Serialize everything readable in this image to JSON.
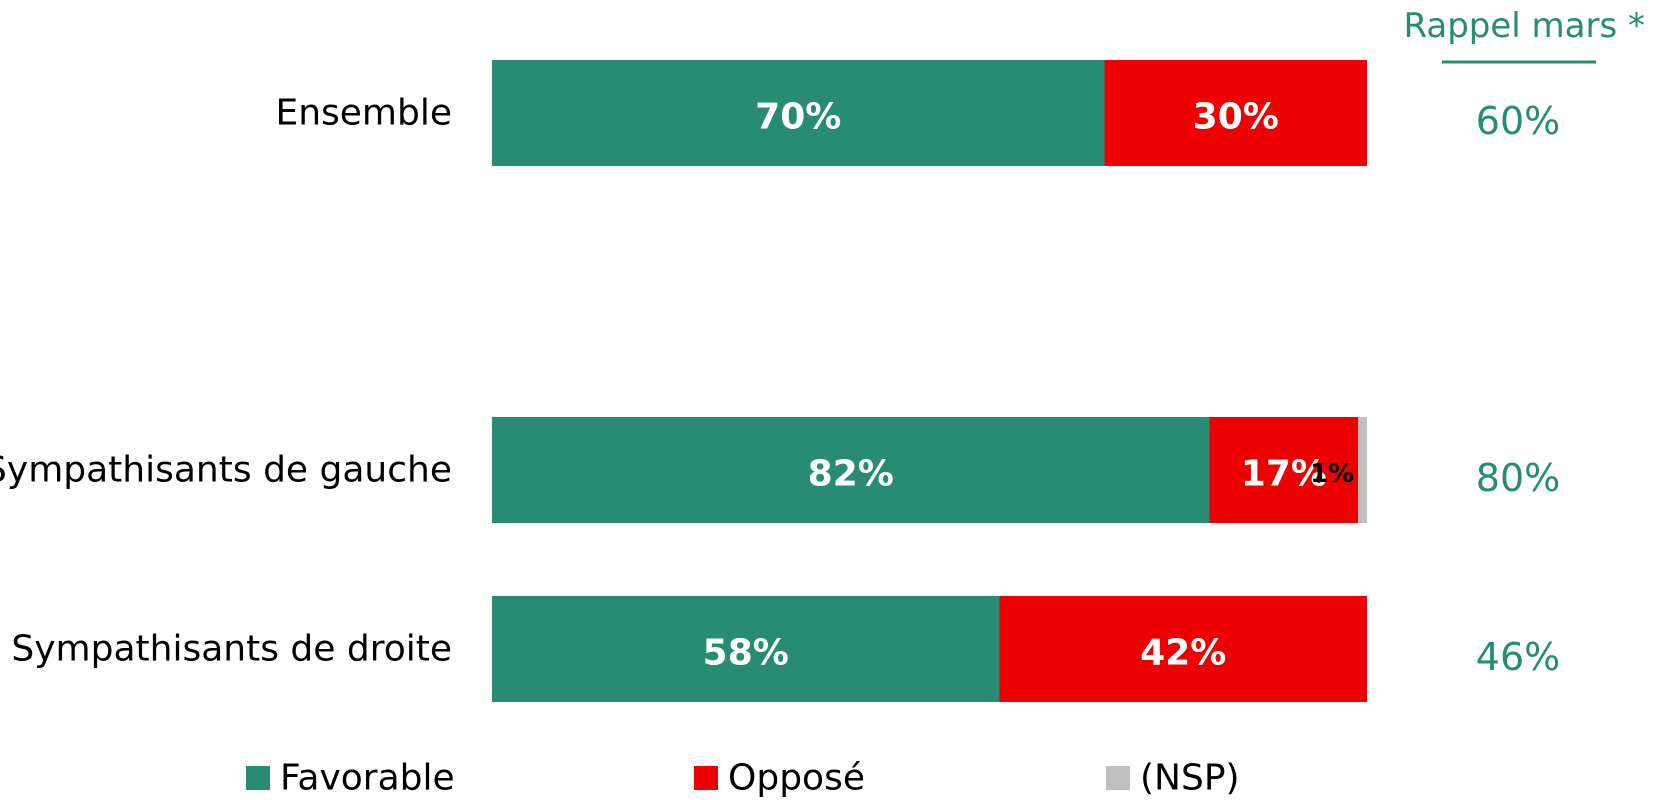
{
  "chart_data": {
    "type": "bar",
    "orientation": "horizontal",
    "stacked": true,
    "categories": [
      "Ensemble",
      "Sympathisants de gauche",
      "Sympathisants de droite"
    ],
    "series": [
      {
        "name": "Favorable",
        "color": "#278C72",
        "values": [
          70,
          82,
          58
        ],
        "labels": [
          "70%",
          "82%",
          "58%"
        ]
      },
      {
        "name": "Opposé",
        "color": "#EE0000",
        "values": [
          30,
          17,
          42
        ],
        "labels": [
          "30%",
          "17%",
          "42%"
        ]
      },
      {
        "name": "(NSP)",
        "color": "#BFBFBF",
        "values": [
          0,
          1,
          0
        ],
        "labels": [
          "",
          "1%",
          ""
        ]
      }
    ],
    "xlim": [
      0,
      100
    ],
    "unit": "%",
    "legend_position": "bottom",
    "grid": false,
    "recall": {
      "header": "Rappel mars *",
      "color": "#278C72",
      "values": [
        "60%",
        "80%",
        "46%"
      ]
    }
  }
}
